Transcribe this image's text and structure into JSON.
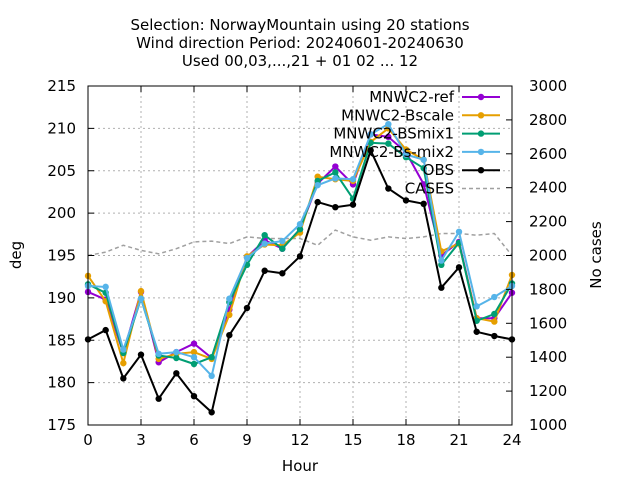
{
  "chart_data": {
    "type": "line",
    "title_lines": [
      "Selection: NorwayMountain using    20 stations",
      "Wind direction   Period: 20240601-20240630",
      "Used 00,03,...,21 + 01 02 ... 12"
    ],
    "xlabel": "Hour",
    "ylabel": "deg",
    "y2label": "No cases",
    "xlim": [
      0,
      24
    ],
    "ylim": [
      175,
      215
    ],
    "y2lim": [
      1000,
      3000
    ],
    "xticks": [
      0,
      3,
      6,
      9,
      12,
      15,
      18,
      21,
      24
    ],
    "yticks": [
      175,
      180,
      185,
      190,
      195,
      200,
      205,
      210,
      215
    ],
    "y2ticks": [
      1000,
      1200,
      1400,
      1600,
      1800,
      2000,
      2200,
      2400,
      2600,
      2800,
      3000
    ],
    "grid": true,
    "legend_position": "top-right",
    "x": [
      0,
      1,
      2,
      3,
      4,
      5,
      6,
      7,
      8,
      9,
      10,
      11,
      12,
      13,
      14,
      15,
      16,
      17,
      18,
      19,
      20,
      21,
      22,
      23,
      24
    ],
    "series": [
      {
        "name": "MNWC2-ref",
        "color": "#9400d3",
        "marker": "circle",
        "axis": "y",
        "values": [
          190.7,
          189.8,
          183.5,
          190.7,
          182.4,
          183.6,
          184.6,
          182.9,
          188.6,
          194.8,
          196.8,
          195.8,
          198.1,
          203.5,
          205.5,
          203.4,
          209.3,
          209.0,
          207.2,
          203.4,
          195.0,
          196.6,
          187.6,
          187.6,
          190.6
        ]
      },
      {
        "name": "MNWC2-Bscale",
        "color": "#e69f00",
        "marker": "circle",
        "axis": "y",
        "values": [
          192.6,
          189.6,
          182.3,
          190.8,
          182.8,
          183.4,
          183.6,
          182.8,
          188.0,
          194.9,
          196.3,
          196.2,
          197.7,
          204.3,
          204.0,
          203.8,
          208.4,
          210.0,
          207.5,
          206.3,
          195.5,
          196.4,
          187.6,
          187.2,
          192.7
        ]
      },
      {
        "name": "MNWC2-BSmix1",
        "color": "#009e73",
        "marker": "circle",
        "axis": "y",
        "values": [
          191.6,
          190.6,
          183.5,
          189.9,
          183.2,
          182.9,
          182.2,
          183.0,
          189.5,
          193.9,
          197.4,
          195.8,
          198.1,
          203.8,
          204.8,
          201.7,
          208.3,
          208.2,
          206.6,
          205.3,
          193.9,
          196.5,
          187.3,
          188.1,
          191.7
        ]
      },
      {
        "name": "MNWC2-Bs-mix2",
        "color": "#56b4e9",
        "marker": "circle",
        "axis": "y",
        "values": [
          191.4,
          191.3,
          183.9,
          189.9,
          183.4,
          183.6,
          183.0,
          180.8,
          189.9,
          194.7,
          196.4,
          196.7,
          198.7,
          203.3,
          204.1,
          204.0,
          209.3,
          210.5,
          206.9,
          206.3,
          194.4,
          197.8,
          189.0,
          190.1,
          191.4
        ]
      },
      {
        "name": "OBS",
        "color": "#000000",
        "marker": "circle",
        "axis": "y",
        "values": [
          185.1,
          186.2,
          180.5,
          183.3,
          178.1,
          181.1,
          178.4,
          176.5,
          185.6,
          188.8,
          193.2,
          192.9,
          194.9,
          201.3,
          200.7,
          201.0,
          207.4,
          202.9,
          201.5,
          201.1,
          191.2,
          193.6,
          186.0,
          185.5,
          185.1
        ]
      },
      {
        "name": "CASES",
        "color": "#a0a0a0",
        "marker": "none",
        "dash": true,
        "axis": "y2",
        "values": [
          2000,
          2020,
          2060,
          2030,
          2010,
          2040,
          2080,
          2085,
          2070,
          2110,
          2100,
          2100,
          2100,
          2060,
          2150,
          2110,
          2090,
          2110,
          2100,
          2110,
          2130,
          2130,
          2120,
          2130,
          2000
        ]
      }
    ]
  }
}
